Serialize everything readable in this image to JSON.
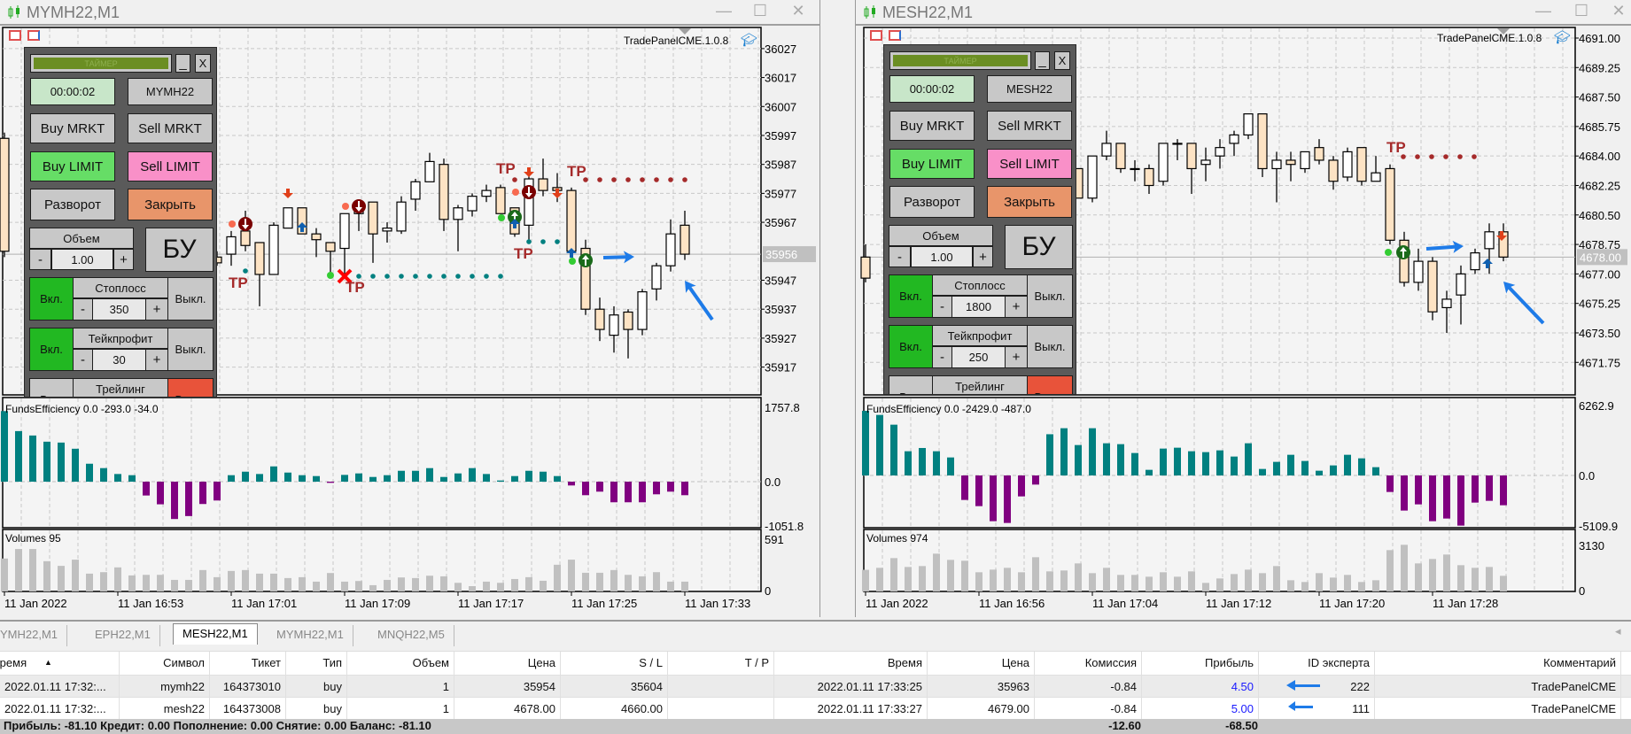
{
  "windows": [
    {
      "title": "MYMH22,M1",
      "indicator_name": "TradePanelCME.1.0.8",
      "price_axis": {
        "ticks": [
          "36027",
          "36017",
          "36007",
          "35997",
          "35987",
          "35977",
          "35967",
          "35947",
          "35937",
          "35927",
          "35917"
        ],
        "current_price": "35956"
      },
      "time_axis": {
        "labels": [
          "11 Jan 2022",
          "11 Jan 16:53",
          "11 Jan 17:01",
          "11 Jan 17:09",
          "11 Jan 17:17",
          "11 Jan 17:25",
          "11 Jan 17:33"
        ]
      },
      "funds": {
        "label": "FundsEfficiency 0.0 -293.0 -34.0",
        "ticks": [
          "1757.8",
          "0.0",
          "-1051.8"
        ]
      },
      "volumes": {
        "label": "Volumes 95",
        "ticks": [
          "591",
          "0"
        ]
      },
      "annotations": {
        "tp": "TP"
      },
      "panel": {
        "timer_caption": "ТАЙМЕР",
        "minimize": "_",
        "close": "X",
        "timer": "00:00:02",
        "symbol": "MYMH22",
        "buy_market": "Buy MRKT",
        "sell_market": "Sell MRKT",
        "buy_limit": "Buy LIMIT",
        "sell_limit": "Sell LIMIT",
        "reverse": "Разворот",
        "close_all": "Закрыть",
        "volume_label": "Объем",
        "volume_value": "1.00",
        "minus": "-",
        "plus": "+",
        "breakeven": "БУ",
        "stoploss_label": "Стоплосс",
        "stoploss_value": "350",
        "takeprofit_label": "Тейкпрофит",
        "takeprofit_value": "30",
        "trailing_label": "Трейлинг",
        "on": "Вкл.",
        "off": "Выкл."
      }
    },
    {
      "title": "MESH22,M1",
      "indicator_name": "TradePanelCME.1.0.8",
      "price_axis": {
        "ticks": [
          "4691.00",
          "4689.25",
          "4687.50",
          "4685.75",
          "4684.00",
          "4682.25",
          "4680.50",
          "4678.75",
          "4677.00",
          "4675.25",
          "4673.50",
          "4671.75"
        ],
        "current_price": "4678.00"
      },
      "time_axis": {
        "labels": [
          "11 Jan 2022",
          "11 Jan 16:56",
          "11 Jan 17:04",
          "11 Jan 17:12",
          "11 Jan 17:20",
          "11 Jan 17:28"
        ]
      },
      "funds": {
        "label": "FundsEfficiency 0.0 -2429.0 -487.0",
        "ticks": [
          "6262.9",
          "0.0",
          "-5109.9"
        ]
      },
      "volumes": {
        "label": "Volumes 974",
        "ticks": [
          "3130",
          "0"
        ]
      },
      "annotations": {
        "tp": "TP"
      },
      "panel": {
        "timer_caption": "ТАЙМЕР",
        "minimize": "_",
        "close": "X",
        "timer": "00:00:02",
        "symbol": "MESH22",
        "buy_market": "Buy MRKT",
        "sell_market": "Sell MRKT",
        "buy_limit": "Buy LIMIT",
        "sell_limit": "Sell LIMIT",
        "reverse": "Разворот",
        "close_all": "Закрыть",
        "volume_label": "Объем",
        "volume_value": "1.00",
        "minus": "-",
        "plus": "+",
        "breakeven": "БУ",
        "stoploss_label": "Стоплосс",
        "stoploss_value": "1800",
        "takeprofit_label": "Тейкпрофит",
        "takeprofit_value": "250",
        "trailing_label": "Трейлинг",
        "on": "Вкл.",
        "off": "Выкл."
      }
    }
  ],
  "terminal": {
    "tabs": [
      "YMH22,M1",
      "EPH22,M1",
      "MESH22,M1",
      "MYMH22,M1",
      "MNQH22,M5"
    ],
    "active_tab": "MESH22,M1",
    "columns": [
      "Время",
      "Символ",
      "Тикет",
      "Тип",
      "Объем",
      "Цена",
      "S / L",
      "T / P",
      "Время",
      "Цена",
      "Комиссия",
      "Прибыль",
      "ID эксперта",
      "Комментарий"
    ],
    "sort_indicator": "▲",
    "rows": [
      [
        "2022.01.11 17:32:...",
        "mymh22",
        "164373010",
        "buy",
        "1",
        "35954",
        "35604",
        "",
        "2022.01.11 17:33:25",
        "35963",
        "-0.84",
        "4.50",
        "222",
        "TradePanelCME"
      ],
      [
        "2022.01.11 17:32:...",
        "mesh22",
        "164373008",
        "buy",
        "1",
        "4678.00",
        "4660.00",
        "",
        "2022.01.11 17:33:27",
        "4679.00",
        "-0.84",
        "5.00",
        "111",
        "TradePanelCME"
      ]
    ],
    "summary": "Прибыль: -81.10  Кредит: 0.00  Пополнение: 0.00  Снятие: 0.00  Баланс: -81.10",
    "summary_commission": "-12.60",
    "summary_profit": "-68.50"
  },
  "colors": {
    "bull": "#ffffff",
    "bear": "#fde3c4",
    "funds_pos": "#008080",
    "funds_neg": "#800080",
    "volume": "#c0c0c0",
    "profit": "#1a1aff",
    "tp": "#a52a2a"
  },
  "chart_data": [
    {
      "type": "candlestick",
      "symbol": "MYMH22",
      "timeframe": "M1",
      "ohlc_format": [
        "open",
        "high",
        "low",
        "close"
      ],
      "price_ylim": [
        35907.4,
        36034.3
      ],
      "candles": [
        [
          35996,
          35998,
          35955,
          35957
        ],
        null,
        null,
        null,
        null,
        null,
        null,
        null,
        null,
        null,
        null,
        null,
        null,
        null,
        null,
        [
          35955,
          35957,
          35952,
          35953
        ],
        [
          35956,
          35964,
          35952,
          35962
        ],
        [
          35964,
          35971,
          35957,
          35959
        ],
        [
          35960,
          35960,
          35938,
          35949
        ],
        [
          35949,
          35967,
          35949,
          35966
        ],
        [
          35965,
          35972,
          35965,
          35972
        ],
        [
          35972,
          35972,
          35963,
          35963
        ],
        [
          35963,
          35965,
          35955,
          35961
        ],
        [
          35960,
          35960,
          35949,
          35957
        ],
        [
          35958,
          35970,
          35949,
          35970
        ],
        [
          35970,
          35974,
          35964,
          35973
        ],
        [
          35974,
          35974,
          35953,
          35963
        ],
        [
          35964,
          35967,
          35960,
          35965
        ],
        [
          35964,
          35976,
          35963,
          35974
        ],
        [
          35975,
          35982,
          35971,
          35981
        ],
        [
          35981,
          35991,
          35981,
          35988
        ],
        [
          35987,
          35989,
          35964,
          35968
        ],
        [
          35968,
          35973,
          35957,
          35972
        ],
        [
          35971,
          35977,
          35969,
          35976
        ],
        [
          35976,
          35980,
          35974,
          35978
        ],
        [
          35979,
          35980,
          35970,
          35970
        ],
        [
          35972,
          35972,
          35962,
          35963
        ],
        [
          35966,
          35984,
          35960,
          35982
        ],
        [
          35982,
          35989,
          35976,
          35978
        ],
        [
          35979,
          35984,
          35974,
          35978
        ],
        [
          35978,
          35979,
          35957,
          35957
        ],
        [
          35958,
          35961,
          35935,
          35937
        ],
        [
          35937,
          35941,
          35926,
          35930
        ],
        [
          35928,
          35938,
          35922,
          35935
        ],
        [
          35936,
          35937,
          35920,
          35930
        ],
        [
          35930,
          35944,
          35928,
          35943
        ],
        [
          35944,
          35953,
          35940,
          35952
        ],
        [
          35952,
          35968,
          35950,
          35963
        ],
        [
          35966,
          35971,
          35954,
          35956
        ]
      ],
      "funds_ylim": [
        -1088,
        1988
      ],
      "funds": [
        1668,
        1195,
        1091,
        945,
        924,
        778,
        424,
        320,
        181,
        153,
        -327,
        -535,
        -883,
        -813,
        -528,
        -445,
        153,
        236,
        181,
        361,
        215,
        153,
        132,
        -28,
        160,
        195,
        111,
        153,
        257,
        257,
        320,
        111,
        195,
        320,
        181,
        28,
        132,
        257,
        236,
        132,
        -90,
        -320,
        -236,
        -487,
        -487,
        -487,
        -299,
        -236,
        -320
      ],
      "volumes_ylim": [
        0,
        713
      ],
      "volumes": [
        379,
        488,
        488,
        348,
        294,
        366,
        205,
        222,
        277,
        184,
        191,
        191,
        133,
        133,
        246,
        164,
        236,
        246,
        205,
        205,
        154,
        164,
        113,
        212,
        113,
        120,
        72,
        133,
        161,
        154,
        181,
        174,
        99,
        61,
        113,
        99,
        143,
        164,
        123,
        307,
        366,
        215,
        215,
        246,
        191,
        174,
        222,
        113,
        113
      ]
    },
    {
      "type": "candlestick",
      "symbol": "MESH22",
      "timeframe": "M1",
      "ohlc_format": [
        "open",
        "high",
        "low",
        "close"
      ],
      "price_ylim": [
        4669.82,
        4691.63
      ],
      "candles": [
        [
          4678,
          4678.75,
          4676.5,
          4676.75
        ],
        null,
        null,
        null,
        null,
        null,
        null,
        null,
        null,
        null,
        null,
        null,
        null,
        null,
        null,
        [
          4683.25,
          4683.25,
          4681.5,
          4681.5
        ],
        [
          4681.5,
          4684,
          4681.25,
          4684
        ],
        [
          4684,
          4685.5,
          4683.75,
          4684.75
        ],
        [
          4684.75,
          4684.75,
          4683,
          4683.25
        ],
        [
          4683.25,
          4683.75,
          4682.5,
          4683.25
        ],
        [
          4683.25,
          4683.5,
          4681.75,
          4682.25
        ],
        [
          4682.5,
          4684.75,
          4682.25,
          4684.75
        ],
        [
          4684.75,
          4685,
          4683.75,
          4684.75
        ],
        [
          4684.75,
          4684.75,
          4681.75,
          4683.25
        ],
        [
          4683.5,
          4684.5,
          4682.5,
          4683.75
        ],
        [
          4684,
          4685,
          4683.25,
          4684.5
        ],
        [
          4684.75,
          4685.5,
          4684,
          4685.25
        ],
        [
          4685.25,
          4686.5,
          4685,
          4686.5
        ],
        [
          4686.5,
          4686.5,
          4682.75,
          4683.25
        ],
        [
          4683.25,
          4684.25,
          4681.25,
          4683.75
        ],
        [
          4683.75,
          4684.25,
          4682.5,
          4683.5
        ],
        [
          4683.25,
          4684.25,
          4683,
          4684.25
        ],
        [
          4684.5,
          4685,
          4683.5,
          4683.75
        ],
        [
          4683.75,
          4684,
          4682,
          4682.5
        ],
        [
          4682.75,
          4684.5,
          4682.5,
          4684.25
        ],
        [
          4684.5,
          4684.5,
          4682.25,
          4682.5
        ],
        [
          4682.5,
          4684,
          4682.5,
          4683
        ],
        [
          4683.25,
          4683.5,
          4678.75,
          4679
        ],
        [
          4679,
          4679.5,
          4676.25,
          4676.5
        ],
        [
          4676.5,
          4678.5,
          4676,
          4677.75
        ],
        [
          4677.75,
          4678,
          4674.25,
          4674.75
        ],
        [
          4675,
          4676,
          4673.5,
          4675.5
        ],
        [
          4675.75,
          4677.5,
          4674,
          4677
        ],
        [
          4677.25,
          4678.5,
          4677,
          4678.25
        ],
        [
          4678.5,
          4680,
          4677,
          4679.5
        ],
        [
          4679.5,
          4680,
          4677.75,
          4678
        ]
      ],
      "funds_ylim": [
        -4680,
        6976
      ],
      "funds": [
        5788,
        5418,
        4546,
        2167,
        2458,
        2167,
        1612,
        -2194,
        -2749,
        -4097,
        -4255,
        -1877,
        -819,
        3691,
        4229,
        2722,
        4229,
        2881,
        2802,
        2009,
        502,
        2405,
        2485,
        2167,
        2088,
        2247,
        1692,
        2881,
        581,
        1216,
        1850,
        1295,
        423,
        899,
        1850,
        1533,
        740,
        -1480,
        -3145,
        -2590,
        -4097,
        -3859,
        -4493,
        -2432,
        -2273,
        -2669
      ],
      "volumes_ylim": [
        0,
        4296
      ],
      "volumes": [
        1500,
        1637,
        2312,
        1698,
        1760,
        2619,
        2189,
        2128,
        1330,
        1514,
        1637,
        1330,
        2373,
        1391,
        1453,
        1944,
        1269,
        1637,
        1146,
        1146,
        1023,
        1330,
        1023,
        1391,
        593,
        900,
        1207,
        1514,
        1269,
        1760,
        777,
        655,
        1269,
        962,
        1146,
        655,
        777,
        2864,
        3233,
        1944,
        2251,
        2558,
        1821,
        1637,
        1698,
        1084
      ]
    }
  ]
}
